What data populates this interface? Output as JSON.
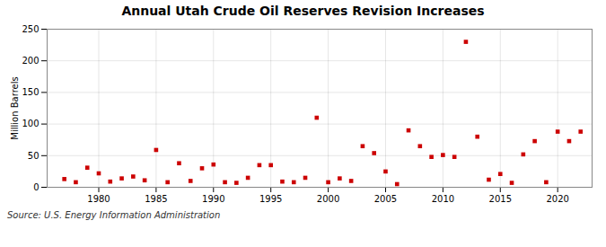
{
  "chart_data": {
    "type": "scatter",
    "title": "Annual Utah Crude Oil Reserves Revision Increases",
    "ylabel": "Million Barrels",
    "source": "Source: U.S. Energy Information Administration",
    "x": [
      1977,
      1978,
      1979,
      1980,
      1981,
      1982,
      1983,
      1984,
      1985,
      1986,
      1987,
      1988,
      1989,
      1990,
      1991,
      1992,
      1993,
      1994,
      1995,
      1996,
      1997,
      1998,
      1999,
      2000,
      2001,
      2002,
      2003,
      2004,
      2005,
      2006,
      2007,
      2008,
      2009,
      2010,
      2011,
      2012,
      2013,
      2014,
      2015,
      2016,
      2017,
      2018,
      2019,
      2020,
      2021,
      2022
    ],
    "values": [
      13,
      8,
      31,
      22,
      9,
      14,
      17,
      11,
      59,
      8,
      38,
      10,
      30,
      36,
      8,
      7,
      15,
      35,
      35,
      9,
      8,
      15,
      110,
      8,
      14,
      10,
      65,
      54,
      25,
      5,
      90,
      65,
      48,
      51,
      48,
      230,
      80,
      12,
      21,
      7,
      52,
      73,
      8,
      88,
      73,
      88
    ],
    "color": "#cc0000",
    "marker": "square",
    "xlim": [
      1975.5,
      2023
    ],
    "xticks": [
      1980,
      1985,
      1990,
      1995,
      2000,
      2005,
      2010,
      2015,
      2020
    ],
    "ylim": [
      0,
      250
    ],
    "yticks": [
      0,
      50,
      100,
      150,
      200,
      250
    ],
    "grid": true
  }
}
